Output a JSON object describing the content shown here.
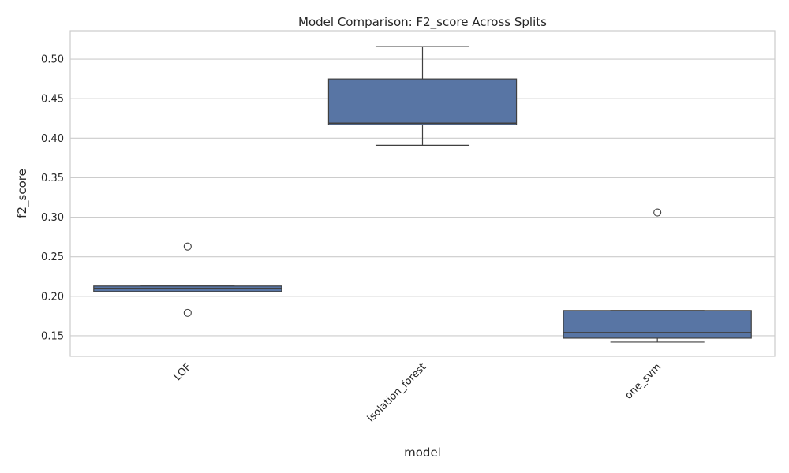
{
  "chart_data": {
    "type": "box",
    "title": "Model Comparison: F2_score Across Splits",
    "xlabel": "model",
    "ylabel": "f2_score",
    "ylim": [
      0.124,
      0.536
    ],
    "yticks": [
      0.15,
      0.2,
      0.25,
      0.3,
      0.35,
      0.4,
      0.45,
      0.5
    ],
    "ytick_labels": [
      "0.15",
      "0.20",
      "0.25",
      "0.30",
      "0.35",
      "0.40",
      "0.45",
      "0.50"
    ],
    "grid": true,
    "box_color": "#5875a4",
    "edge_color": "#404040",
    "categories": [
      "LOF",
      "isolation_forest",
      "one_svm"
    ],
    "boxes": [
      {
        "category": "LOF",
        "whisker_low": 0.206,
        "q1": 0.206,
        "median": 0.21,
        "q3": 0.213,
        "whisker_high": 0.213,
        "outliers": [
          0.263,
          0.179
        ]
      },
      {
        "category": "isolation_forest",
        "whisker_low": 0.391,
        "q1": 0.417,
        "median": 0.419,
        "q3": 0.475,
        "whisker_high": 0.516,
        "outliers": []
      },
      {
        "category": "one_svm",
        "whisker_low": 0.142,
        "q1": 0.147,
        "median": 0.154,
        "q3": 0.182,
        "whisker_high": 0.182,
        "outliers": [
          0.306
        ]
      }
    ]
  }
}
